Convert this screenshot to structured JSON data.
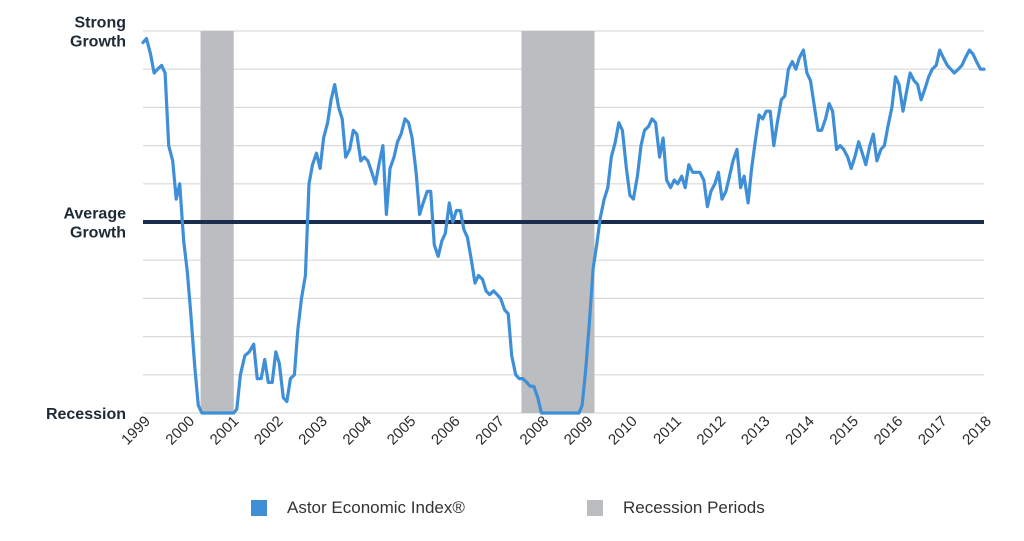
{
  "colors": {
    "index_line": "#3e8fd8",
    "recession": "#bcbdc0",
    "average": "#1b2d4c",
    "grid": "#d9d9d9"
  },
  "legend": {
    "index_label": "Astor Economic Index®",
    "recession_label": "Recession Periods"
  },
  "chart_data": {
    "type": "line",
    "title": "",
    "xlabel": "",
    "ylabel": "",
    "xlim": [
      1999.0,
      2018.0
    ],
    "ylim": [
      0,
      100
    ],
    "grid": true,
    "legend_placement": "bottom",
    "y_labels": [
      {
        "value": 100,
        "lines": [
          "Strong",
          "Growth"
        ]
      },
      {
        "value": 50,
        "lines": [
          "Average",
          "Growth"
        ]
      },
      {
        "value": 0,
        "lines": [
          "Recession"
        ]
      }
    ],
    "x_ticks": [
      "1999",
      "2000",
      "2001",
      "2002",
      "2003",
      "2004",
      "2005",
      "2006",
      "2007",
      "2008",
      "2009",
      "2010",
      "2011",
      "2012",
      "2013",
      "2014",
      "2015",
      "2016",
      "2017",
      "2018"
    ],
    "average_line": 50,
    "recession_periods": [
      [
        2000.3,
        2001.05
      ],
      [
        2007.55,
        2009.2
      ]
    ],
    "series": [
      {
        "name": "Astor Economic Index®",
        "points": [
          [
            1999.0,
            97
          ],
          [
            1999.08,
            98
          ],
          [
            1999.17,
            94
          ],
          [
            1999.25,
            89
          ],
          [
            1999.33,
            90
          ],
          [
            1999.42,
            91
          ],
          [
            1999.5,
            89
          ],
          [
            1999.58,
            70
          ],
          [
            1999.67,
            66
          ],
          [
            1999.75,
            56
          ],
          [
            1999.83,
            60
          ],
          [
            1999.92,
            45
          ],
          [
            2000.0,
            37
          ],
          [
            2000.08,
            26
          ],
          [
            2000.17,
            12
          ],
          [
            2000.25,
            2
          ],
          [
            2000.33,
            0
          ],
          [
            2000.5,
            0
          ],
          [
            2000.75,
            0
          ],
          [
            2001.0,
            0
          ],
          [
            2001.05,
            0
          ],
          [
            2001.12,
            1
          ],
          [
            2001.2,
            10
          ],
          [
            2001.3,
            15
          ],
          [
            2001.4,
            16
          ],
          [
            2001.5,
            18
          ],
          [
            2001.58,
            9
          ],
          [
            2001.67,
            9
          ],
          [
            2001.75,
            14
          ],
          [
            2001.83,
            8
          ],
          [
            2001.92,
            8
          ],
          [
            2002.0,
            16
          ],
          [
            2002.08,
            13
          ],
          [
            2002.17,
            4
          ],
          [
            2002.25,
            3
          ],
          [
            2002.33,
            9
          ],
          [
            2002.42,
            10
          ],
          [
            2002.5,
            22
          ],
          [
            2002.58,
            30
          ],
          [
            2002.67,
            36
          ],
          [
            2002.75,
            60
          ],
          [
            2002.83,
            65
          ],
          [
            2002.92,
            68
          ],
          [
            2003.0,
            64
          ],
          [
            2003.08,
            72
          ],
          [
            2003.17,
            76
          ],
          [
            2003.25,
            82
          ],
          [
            2003.33,
            86
          ],
          [
            2003.42,
            80
          ],
          [
            2003.5,
            77
          ],
          [
            2003.58,
            67
          ],
          [
            2003.67,
            69
          ],
          [
            2003.75,
            74
          ],
          [
            2003.83,
            73
          ],
          [
            2003.92,
            66
          ],
          [
            2004.0,
            67
          ],
          [
            2004.08,
            66
          ],
          [
            2004.17,
            63
          ],
          [
            2004.25,
            60
          ],
          [
            2004.33,
            65
          ],
          [
            2004.42,
            70
          ],
          [
            2004.5,
            52
          ],
          [
            2004.58,
            64
          ],
          [
            2004.67,
            67
          ],
          [
            2004.75,
            71
          ],
          [
            2004.83,
            73
          ],
          [
            2004.92,
            77
          ],
          [
            2005.0,
            76
          ],
          [
            2005.08,
            72
          ],
          [
            2005.17,
            63
          ],
          [
            2005.25,
            52
          ],
          [
            2005.33,
            55
          ],
          [
            2005.42,
            58
          ],
          [
            2005.5,
            58
          ],
          [
            2005.58,
            44
          ],
          [
            2005.67,
            41
          ],
          [
            2005.75,
            45
          ],
          [
            2005.83,
            47
          ],
          [
            2005.92,
            55
          ],
          [
            2006.0,
            50
          ],
          [
            2006.08,
            53
          ],
          [
            2006.17,
            53
          ],
          [
            2006.25,
            48
          ],
          [
            2006.33,
            46
          ],
          [
            2006.42,
            40
          ],
          [
            2006.5,
            34
          ],
          [
            2006.58,
            36
          ],
          [
            2006.67,
            35
          ],
          [
            2006.75,
            32
          ],
          [
            2006.83,
            31
          ],
          [
            2006.92,
            32
          ],
          [
            2007.0,
            31
          ],
          [
            2007.08,
            30
          ],
          [
            2007.17,
            27
          ],
          [
            2007.25,
            26
          ],
          [
            2007.33,
            15
          ],
          [
            2007.42,
            10
          ],
          [
            2007.5,
            9
          ],
          [
            2007.58,
            9
          ],
          [
            2007.67,
            8
          ],
          [
            2007.75,
            7
          ],
          [
            2007.83,
            7
          ],
          [
            2007.92,
            4
          ],
          [
            2008.0,
            0
          ],
          [
            2008.25,
            0
          ],
          [
            2008.5,
            0
          ],
          [
            2008.75,
            0
          ],
          [
            2008.85,
            0
          ],
          [
            2008.92,
            2
          ],
          [
            2009.0,
            11
          ],
          [
            2009.08,
            23
          ],
          [
            2009.17,
            38
          ],
          [
            2009.25,
            44
          ],
          [
            2009.33,
            51
          ],
          [
            2009.42,
            56
          ],
          [
            2009.5,
            59
          ],
          [
            2009.58,
            67
          ],
          [
            2009.67,
            71
          ],
          [
            2009.75,
            76
          ],
          [
            2009.83,
            74
          ],
          [
            2009.92,
            64
          ],
          [
            2010.0,
            57
          ],
          [
            2010.08,
            56
          ],
          [
            2010.17,
            62
          ],
          [
            2010.25,
            70
          ],
          [
            2010.33,
            74
          ],
          [
            2010.42,
            75
          ],
          [
            2010.5,
            77
          ],
          [
            2010.58,
            76
          ],
          [
            2010.67,
            67
          ],
          [
            2010.75,
            72
          ],
          [
            2010.83,
            61
          ],
          [
            2010.92,
            59
          ],
          [
            2011.0,
            61
          ],
          [
            2011.08,
            60
          ],
          [
            2011.17,
            62
          ],
          [
            2011.25,
            59
          ],
          [
            2011.33,
            65
          ],
          [
            2011.42,
            63
          ],
          [
            2011.5,
            63
          ],
          [
            2011.58,
            63
          ],
          [
            2011.67,
            61
          ],
          [
            2011.75,
            54
          ],
          [
            2011.83,
            58
          ],
          [
            2011.92,
            60
          ],
          [
            2012.0,
            63
          ],
          [
            2012.08,
            56
          ],
          [
            2012.17,
            58
          ],
          [
            2012.25,
            62
          ],
          [
            2012.33,
            66
          ],
          [
            2012.42,
            69
          ],
          [
            2012.5,
            59
          ],
          [
            2012.58,
            62
          ],
          [
            2012.67,
            55
          ],
          [
            2012.75,
            64
          ],
          [
            2012.83,
            71
          ],
          [
            2012.92,
            78
          ],
          [
            2013.0,
            77
          ],
          [
            2013.08,
            79
          ],
          [
            2013.17,
            79
          ],
          [
            2013.25,
            70
          ],
          [
            2013.33,
            76
          ],
          [
            2013.42,
            82
          ],
          [
            2013.5,
            83
          ],
          [
            2013.58,
            90
          ],
          [
            2013.67,
            92
          ],
          [
            2013.75,
            90
          ],
          [
            2013.83,
            93
          ],
          [
            2013.92,
            95
          ],
          [
            2014.0,
            89
          ],
          [
            2014.08,
            87
          ],
          [
            2014.17,
            80
          ],
          [
            2014.25,
            74
          ],
          [
            2014.33,
            74
          ],
          [
            2014.42,
            77
          ],
          [
            2014.5,
            81
          ],
          [
            2014.58,
            79
          ],
          [
            2014.67,
            69
          ],
          [
            2014.75,
            70
          ],
          [
            2014.83,
            69
          ],
          [
            2014.92,
            67
          ],
          [
            2015.0,
            64
          ],
          [
            2015.08,
            67
          ],
          [
            2015.17,
            71
          ],
          [
            2015.25,
            68
          ],
          [
            2015.33,
            65
          ],
          [
            2015.42,
            70
          ],
          [
            2015.5,
            73
          ],
          [
            2015.58,
            66
          ],
          [
            2015.67,
            69
          ],
          [
            2015.75,
            70
          ],
          [
            2015.83,
            75
          ],
          [
            2015.92,
            80
          ],
          [
            2016.0,
            88
          ],
          [
            2016.08,
            86
          ],
          [
            2016.17,
            79
          ],
          [
            2016.25,
            84
          ],
          [
            2016.33,
            89
          ],
          [
            2016.42,
            87
          ],
          [
            2016.5,
            86
          ],
          [
            2016.58,
            82
          ],
          [
            2016.67,
            85
          ],
          [
            2016.75,
            88
          ],
          [
            2016.83,
            90
          ],
          [
            2016.92,
            91
          ],
          [
            2017.0,
            95
          ],
          [
            2017.08,
            93
          ],
          [
            2017.17,
            91
          ],
          [
            2017.25,
            90
          ],
          [
            2017.33,
            89
          ],
          [
            2017.42,
            90
          ],
          [
            2017.5,
            91
          ],
          [
            2017.58,
            93
          ],
          [
            2017.67,
            95
          ],
          [
            2017.75,
            94
          ],
          [
            2017.83,
            92
          ],
          [
            2017.92,
            90
          ],
          [
            2018.0,
            90
          ]
        ]
      }
    ]
  }
}
